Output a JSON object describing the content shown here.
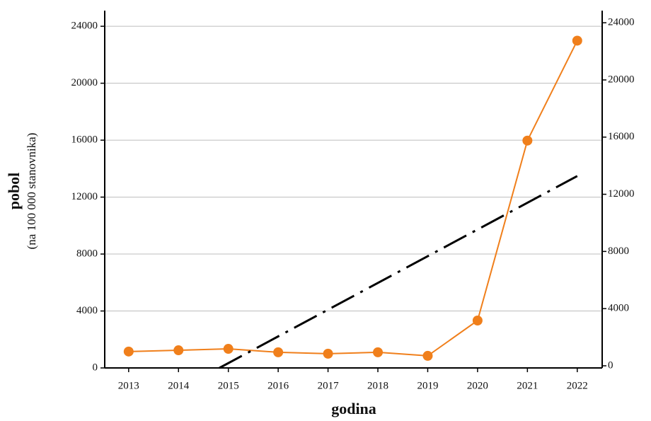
{
  "chart_data": {
    "type": "line",
    "x_label": "godina",
    "y_label": "pobol",
    "y_sublabel": "(na 100 000 stanovnika)",
    "x": [
      2013,
      2014,
      2015,
      2016,
      2017,
      2018,
      2019,
      2020,
      2021,
      2022
    ],
    "xlim": [
      2012.52,
      2022.5
    ],
    "xticks": [
      2013,
      2014,
      2015,
      2016,
      2017,
      2018,
      2019,
      2020,
      2021,
      2022
    ],
    "ylim": [
      0,
      25100
    ],
    "yticks": [
      0,
      4000,
      8000,
      12000,
      16000,
      20000,
      24000
    ],
    "y2lim": [
      -150,
      24850
    ],
    "y2ticks": [
      0,
      4000,
      8000,
      12000,
      16000,
      20000,
      24000
    ],
    "grid": true,
    "series": [
      {
        "color": "#f07f1b",
        "values": [
          1150,
          1240,
          1340,
          1100,
          1000,
          1100,
          850,
          3330,
          15970,
          22990
        ]
      },
      {
        "color": "#000000",
        "dashed": true,
        "x": [
          2014.82,
          2022
        ],
        "values": [
          0,
          13480
        ]
      }
    ]
  }
}
